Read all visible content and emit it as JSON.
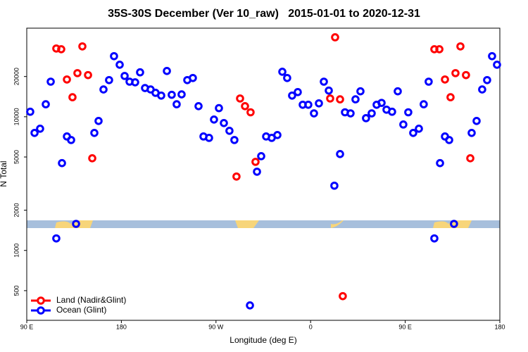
{
  "chart_data": {
    "type": "scatter",
    "title": "35S-30S December (Ver 10_raw)   2015-01-01 to 2020-12-31",
    "xlabel": "Longitude (deg E)",
    "ylabel": "N Total",
    "xlim": [
      90,
      540
    ],
    "xticks": [
      {
        "value": 90,
        "label": "90 E"
      },
      180,
      {
        "value": 270,
        "label": "90 W"
      },
      {
        "value": 360,
        "label": "0"
      },
      {
        "value": 450,
        "label": "90 E"
      },
      {
        "value": 540,
        "label": "180"
      }
    ],
    "ylim": [
      300,
      46000
    ],
    "ylog": true,
    "yticks": [
      500,
      1000,
      2000,
      5000,
      10000,
      20000
    ],
    "legend": "lower left",
    "series": [
      {
        "name": "Land (Nadir&Glint)",
        "color": "#ff0000",
        "x": [
          118.1,
          122.8,
          128.2,
          133.5,
          138.2,
          142.9,
          148.3,
          152.3,
          289.5,
          292.9,
          297.6,
          302.9,
          307.6,
          378.6,
          383.3,
          388,
          390.6,
          477.7,
          482.5,
          487.8,
          493.1,
          497.8,
          502.5,
          507.8,
          511.9
        ],
        "values": [
          32400,
          32000,
          19000,
          14000,
          21200,
          33600,
          20500,
          4890,
          3570,
          13700,
          12000,
          10800,
          4600,
          13700,
          39300,
          13500,
          455,
          32000,
          32000,
          19000,
          14000,
          21200,
          33600,
          20500,
          4890
        ]
      },
      {
        "name": "Ocean (Glint)",
        "color": "#0000ff",
        "x": [
          93.3,
          97.4,
          102.7,
          108.1,
          112.8,
          123.5,
          128.2,
          132.2,
          136.9,
          118.1,
          154.3,
          158.3,
          163,
          168.3,
          173,
          178.4,
          183.1,
          187.8,
          193.1,
          197.8,
          202.5,
          207.8,
          212.5,
          217.9,
          223.3,
          227.9,
          232.6,
          237.3,
          242.7,
          248,
          253.4,
          258.1,
          263.4,
          268.1,
          272.8,
          277.5,
          282.8,
          287.5,
          302.3,
          309,
          313,
          317.7,
          323,
          328.4,
          333.1,
          337.7,
          342.4,
          347.8,
          352.5,
          357.8,
          363.2,
          367.9,
          372.6,
          377.3,
          382.6,
          388,
          392.7,
          398,
          402.7,
          407.4,
          412.7,
          418.1,
          422.8,
          427.5,
          432.2,
          437.5,
          442.9,
          448.2,
          452.9,
          457.6,
          463,
          467.6,
          472.3,
          477.7,
          483.1,
          487.8,
          491.8,
          496.4,
          513.2,
          517.9,
          523.2,
          527.9,
          532.6,
          537.3
        ],
        "values": [
          10900,
          7570,
          8140,
          12400,
          18300,
          4500,
          7120,
          6700,
          1580,
          1230,
          7570,
          9300,
          16000,
          18800,
          28400,
          24500,
          20200,
          18300,
          18100,
          21500,
          16400,
          16000,
          15100,
          14400,
          22000,
          14600,
          12400,
          14700,
          18800,
          19500,
          12000,
          7120,
          6950,
          9530,
          11600,
          8970,
          7850,
          6700,
          388,
          3880,
          5070,
          7120,
          6950,
          7300,
          21700,
          19500,
          14400,
          15300,
          12300,
          12300,
          10600,
          12600,
          18300,
          15700,
          3050,
          5260,
          10800,
          10600,
          13500,
          15500,
          9760,
          10600,
          12300,
          12700,
          11300,
          10900,
          15500,
          8750,
          10800,
          7570,
          8140,
          12400,
          18300,
          1230,
          4500,
          7120,
          6700,
          1580,
          7570,
          9300,
          16000,
          18800,
          28400,
          24500
        ]
      }
    ]
  }
}
